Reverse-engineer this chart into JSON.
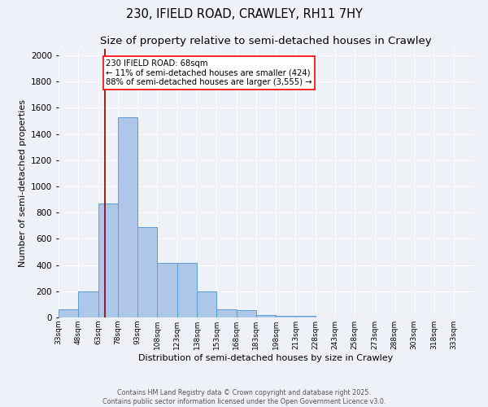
{
  "title_line1": "230, IFIELD ROAD, CRAWLEY, RH11 7HY",
  "title_line2": "Size of property relative to semi-detached houses in Crawley",
  "xlabel": "Distribution of semi-detached houses by size in Crawley",
  "ylabel": "Number of semi-detached properties",
  "footer_line1": "Contains HM Land Registry data © Crown copyright and database right 2025.",
  "footer_line2": "Contains public sector information licensed under the Open Government Licence v3.0.",
  "bin_labels": [
    "33sqm",
    "48sqm",
    "63sqm",
    "78sqm",
    "93sqm",
    "108sqm",
    "123sqm",
    "138sqm",
    "153sqm",
    "168sqm",
    "183sqm",
    "198sqm",
    "213sqm",
    "228sqm",
    "243sqm",
    "258sqm",
    "273sqm",
    "288sqm",
    "303sqm",
    "318sqm",
    "333sqm"
  ],
  "bin_edges": [
    33,
    48,
    63,
    78,
    93,
    108,
    123,
    138,
    153,
    168,
    183,
    198,
    213,
    228,
    243,
    258,
    273,
    288,
    303,
    318,
    333
  ],
  "counts": [
    65,
    200,
    870,
    1530,
    690,
    415,
    415,
    200,
    60,
    55,
    20,
    15,
    15,
    0,
    0,
    0,
    0,
    0,
    0,
    0
  ],
  "bar_color": "#aec6e8",
  "bar_edge_color": "#5a9fd4",
  "property_sqm": 68,
  "vline_color": "#8b0000",
  "annotation_text": "230 IFIELD ROAD: 68sqm\n← 11% of semi-detached houses are smaller (424)\n88% of semi-detached houses are larger (3,555) →",
  "annotation_box_color": "white",
  "annotation_box_edge_color": "red",
  "ylim": [
    0,
    2050
  ],
  "yticks": [
    0,
    200,
    400,
    600,
    800,
    1000,
    1200,
    1400,
    1600,
    1800,
    2000
  ],
  "background_color": "#eef2f8",
  "grid_color": "#ffffff",
  "title_fontsize": 10.5,
  "subtitle_fontsize": 9.5
}
